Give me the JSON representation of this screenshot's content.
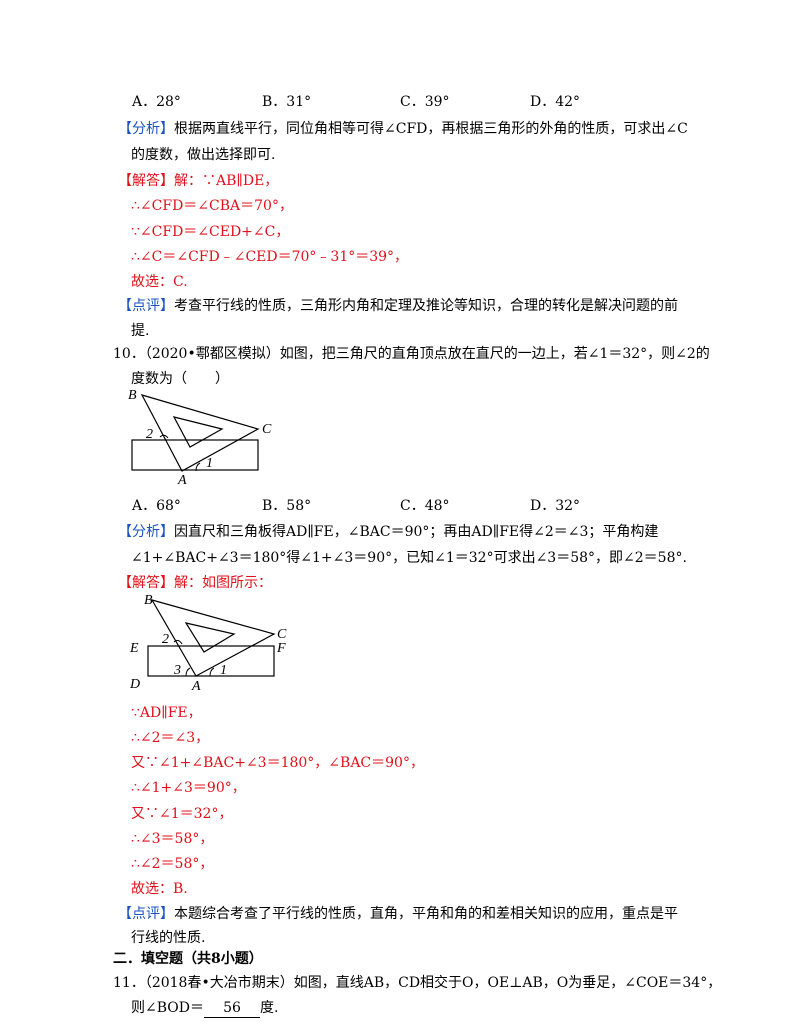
{
  "q9": {
    "options": [
      "A．28°",
      "B．31°",
      "C．39°",
      "D．42°"
    ],
    "analysis_tag": "【分析】",
    "analysis_l1": "根据两直线平行，同位角相等可得∠CFD，再根据三角形的外角的性质，可求出∠C",
    "analysis_l2": "的度数，做出选择即可.",
    "answer_tag": "【解答】",
    "answer_lines": [
      "解：∵AB∥DE，",
      "∴∠CFD＝∠CBA＝70°，",
      "∵∠CFD＝∠CED+∠C，",
      "∴∠C＝∠CFD﹣∠CED＝70°﹣31°＝39°，",
      "故选：C."
    ],
    "review_tag": "【点评】",
    "review_l1": "考查平行线的性质，三角形内角和定理及推论等知识，合理的转化是解决问题的前",
    "review_l2": "提."
  },
  "q10": {
    "number": "10．",
    "stem_l1": "（2020•鄠都区模拟）如图，把三角尺的直角顶点放在直尺的一边上，若∠1＝32°，则∠2的",
    "stem_l2": "度数为（　　）",
    "figure1": {
      "labels": [
        "B",
        "C",
        "2",
        "1",
        "A"
      ]
    },
    "options": [
      "A．68°",
      "B．58°",
      "C．48°",
      "D．32°"
    ],
    "analysis_tag": "【分析】",
    "analysis_l1": "因直尺和三角板得AD∥FE，∠BAC＝90°；再由AD∥FE得∠2＝∠3；平角构建",
    "analysis_l2": "∠1+∠BAC+∠3＝180°得∠1+∠3＝90°，已知∠1＝32°可求出∠3＝58°，即∠2＝58°.",
    "answer_tag": "【解答】",
    "answer_head": "解：如图所示：",
    "figure2": {
      "labels": [
        "B",
        "C",
        "E",
        "F",
        "D",
        "A",
        "2",
        "3",
        "1"
      ]
    },
    "answer_lines": [
      "∵AD∥FE，",
      "∴∠2＝∠3，",
      "又∵∠1+∠BAC+∠3＝180°，∠BAC＝90°，",
      "∴∠1+∠3＝90°，",
      "又∵∠1＝32°，",
      "∴∠3＝58°，",
      "∴∠2＝58°，",
      "故选：B."
    ],
    "review_tag": "【点评】",
    "review_l1": "本题综合考查了平行线的性质，直角，平角和角的和差相关知识的应用，重点是平",
    "review_l2": "行线的性质."
  },
  "section2": {
    "title": "二．填空题（共8小题）"
  },
  "q11": {
    "number": "11．",
    "stem_l1": "（2018春•大冶市期末）如图，直线AB，CD相交于O，OE⊥AB，O为垂足，∠COE＝34°，",
    "stem_l2_prefix": "则∠BOD＝",
    "answer": "56",
    "stem_l2_suffix": "度."
  }
}
